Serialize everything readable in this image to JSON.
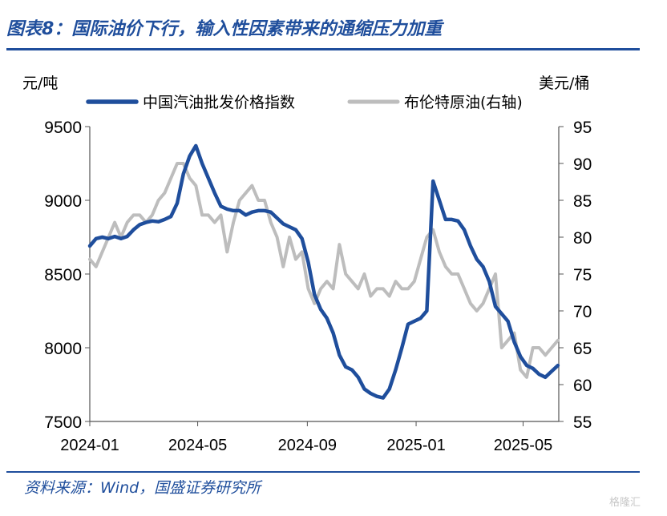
{
  "header": {
    "title": "图表8：国际油价下行，输入性因素带来的通缩压力加重"
  },
  "footer": {
    "source": "资料来源：Wind，国盛证券研究所",
    "watermark": "格隆汇"
  },
  "colors": {
    "accent": "#1f4e9c",
    "series_domestic": "#1f4e9c",
    "series_brent": "#bdbdbd"
  },
  "chart_data": {
    "type": "line",
    "left_axis_label": "元/吨",
    "right_axis_label": "美元/桶",
    "x_ticks": [
      "2024-01",
      "2024-05",
      "2024-09",
      "2025-01",
      "2025-05"
    ],
    "x_range": [
      "2024-01-01",
      "2025-06-10"
    ],
    "y_left": {
      "range": [
        7500,
        9500
      ],
      "ticks": [
        7500,
        8000,
        8500,
        9000,
        9500
      ]
    },
    "y_right": {
      "range": [
        55,
        95
      ],
      "ticks": [
        55,
        60,
        65,
        70,
        75,
        80,
        85,
        90,
        95
      ]
    },
    "legend_position": "top",
    "grid": false,
    "series": [
      {
        "name": "中国汽油批发价格指数",
        "axis": "left",
        "points": [
          [
            "2024-01-01",
            8690
          ],
          [
            "2024-01-08",
            8740
          ],
          [
            "2024-01-15",
            8750
          ],
          [
            "2024-01-22",
            8740
          ],
          [
            "2024-01-29",
            8755
          ],
          [
            "2024-02-05",
            8740
          ],
          [
            "2024-02-12",
            8755
          ],
          [
            "2024-02-19",
            8800
          ],
          [
            "2024-02-26",
            8835
          ],
          [
            "2024-03-04",
            8850
          ],
          [
            "2024-03-11",
            8860
          ],
          [
            "2024-03-18",
            8855
          ],
          [
            "2024-03-25",
            8870
          ],
          [
            "2024-04-01",
            8890
          ],
          [
            "2024-04-08",
            8980
          ],
          [
            "2024-04-15",
            9180
          ],
          [
            "2024-04-22",
            9300
          ],
          [
            "2024-04-29",
            9370
          ],
          [
            "2024-05-06",
            9250
          ],
          [
            "2024-05-13",
            9150
          ],
          [
            "2024-05-20",
            9050
          ],
          [
            "2024-05-27",
            8960
          ],
          [
            "2024-06-03",
            8940
          ],
          [
            "2024-06-10",
            8930
          ],
          [
            "2024-06-17",
            8930
          ],
          [
            "2024-06-24",
            8900
          ],
          [
            "2024-07-01",
            8920
          ],
          [
            "2024-07-08",
            8930
          ],
          [
            "2024-07-15",
            8930
          ],
          [
            "2024-07-22",
            8920
          ],
          [
            "2024-07-29",
            8880
          ],
          [
            "2024-08-05",
            8840
          ],
          [
            "2024-08-12",
            8820
          ],
          [
            "2024-08-19",
            8800
          ],
          [
            "2024-08-26",
            8740
          ],
          [
            "2024-09-02",
            8580
          ],
          [
            "2024-09-09",
            8360
          ],
          [
            "2024-09-16",
            8260
          ],
          [
            "2024-09-23",
            8200
          ],
          [
            "2024-09-30",
            8100
          ],
          [
            "2024-10-07",
            7950
          ],
          [
            "2024-10-14",
            7870
          ],
          [
            "2024-10-21",
            7850
          ],
          [
            "2024-10-28",
            7800
          ],
          [
            "2024-11-04",
            7720
          ],
          [
            "2024-11-11",
            7690
          ],
          [
            "2024-11-18",
            7670
          ],
          [
            "2024-11-25",
            7660
          ],
          [
            "2024-12-02",
            7720
          ],
          [
            "2024-12-09",
            7850
          ],
          [
            "2024-12-16",
            8000
          ],
          [
            "2024-12-23",
            8160
          ],
          [
            "2024-12-30",
            8180
          ],
          [
            "2025-01-06",
            8200
          ],
          [
            "2025-01-13",
            8250
          ],
          [
            "2025-01-20",
            9130
          ],
          [
            "2025-01-27",
            9000
          ],
          [
            "2025-02-03",
            8870
          ],
          [
            "2025-02-10",
            8870
          ],
          [
            "2025-02-17",
            8860
          ],
          [
            "2025-02-24",
            8800
          ],
          [
            "2025-03-03",
            8690
          ],
          [
            "2025-03-10",
            8600
          ],
          [
            "2025-03-17",
            8550
          ],
          [
            "2025-03-24",
            8450
          ],
          [
            "2025-03-31",
            8280
          ],
          [
            "2025-04-07",
            8230
          ],
          [
            "2025-04-14",
            8180
          ],
          [
            "2025-04-21",
            8040
          ],
          [
            "2025-04-28",
            7940
          ],
          [
            "2025-05-05",
            7880
          ],
          [
            "2025-05-12",
            7860
          ],
          [
            "2025-05-19",
            7820
          ],
          [
            "2025-05-26",
            7800
          ],
          [
            "2025-06-02",
            7840
          ],
          [
            "2025-06-09",
            7880
          ]
        ]
      },
      {
        "name": "布伦特原油(右轴)",
        "axis": "right",
        "points": [
          [
            "2024-01-01",
            77
          ],
          [
            "2024-01-08",
            76
          ],
          [
            "2024-01-15",
            78
          ],
          [
            "2024-01-22",
            80
          ],
          [
            "2024-01-29",
            82
          ],
          [
            "2024-02-05",
            80
          ],
          [
            "2024-02-12",
            82
          ],
          [
            "2024-02-19",
            83
          ],
          [
            "2024-02-26",
            83
          ],
          [
            "2024-03-04",
            82
          ],
          [
            "2024-03-11",
            83
          ],
          [
            "2024-03-18",
            85
          ],
          [
            "2024-03-25",
            86
          ],
          [
            "2024-04-01",
            88
          ],
          [
            "2024-04-08",
            90
          ],
          [
            "2024-04-15",
            90
          ],
          [
            "2024-04-22",
            88
          ],
          [
            "2024-04-29",
            87
          ],
          [
            "2024-05-06",
            83
          ],
          [
            "2024-05-13",
            83
          ],
          [
            "2024-05-20",
            82
          ],
          [
            "2024-05-27",
            83
          ],
          [
            "2024-06-03",
            78
          ],
          [
            "2024-06-10",
            82
          ],
          [
            "2024-06-17",
            85
          ],
          [
            "2024-06-24",
            86
          ],
          [
            "2024-07-01",
            87
          ],
          [
            "2024-07-08",
            85
          ],
          [
            "2024-07-15",
            85
          ],
          [
            "2024-07-22",
            82
          ],
          [
            "2024-07-29",
            80
          ],
          [
            "2024-08-05",
            76
          ],
          [
            "2024-08-12",
            80
          ],
          [
            "2024-08-19",
            77
          ],
          [
            "2024-08-26",
            78
          ],
          [
            "2024-09-02",
            73
          ],
          [
            "2024-09-09",
            71
          ],
          [
            "2024-09-16",
            73
          ],
          [
            "2024-09-23",
            74
          ],
          [
            "2024-09-30",
            73
          ],
          [
            "2024-10-07",
            79
          ],
          [
            "2024-10-14",
            75
          ],
          [
            "2024-10-21",
            74
          ],
          [
            "2024-10-28",
            73
          ],
          [
            "2024-11-04",
            75
          ],
          [
            "2024-11-11",
            72
          ],
          [
            "2024-11-18",
            73
          ],
          [
            "2024-11-25",
            73
          ],
          [
            "2024-12-02",
            72
          ],
          [
            "2024-12-09",
            74
          ],
          [
            "2024-12-16",
            73
          ],
          [
            "2024-12-23",
            73
          ],
          [
            "2024-12-30",
            74
          ],
          [
            "2025-01-06",
            77
          ],
          [
            "2025-01-13",
            80
          ],
          [
            "2025-01-20",
            81
          ],
          [
            "2025-01-27",
            78
          ],
          [
            "2025-02-03",
            76
          ],
          [
            "2025-02-10",
            75
          ],
          [
            "2025-02-17",
            75
          ],
          [
            "2025-02-24",
            73
          ],
          [
            "2025-03-03",
            71
          ],
          [
            "2025-03-10",
            70
          ],
          [
            "2025-03-17",
            71
          ],
          [
            "2025-03-24",
            73
          ],
          [
            "2025-03-31",
            75
          ],
          [
            "2025-04-07",
            65
          ],
          [
            "2025-04-14",
            66
          ],
          [
            "2025-04-21",
            67
          ],
          [
            "2025-04-28",
            62
          ],
          [
            "2025-05-05",
            61
          ],
          [
            "2025-05-12",
            65
          ],
          [
            "2025-05-19",
            65
          ],
          [
            "2025-05-26",
            64
          ],
          [
            "2025-06-02",
            65
          ],
          [
            "2025-06-09",
            66
          ]
        ]
      }
    ]
  }
}
